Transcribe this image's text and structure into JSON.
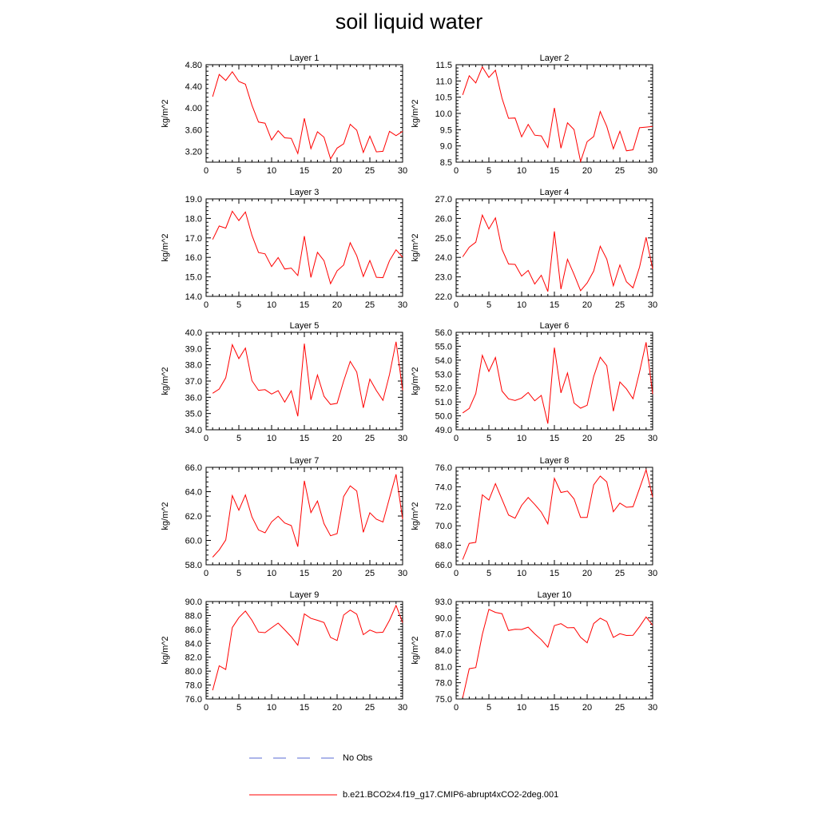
{
  "title": "soil liquid water",
  "legend": {
    "obs_label": "No Obs",
    "obs_color": "#5a6bd6",
    "model_label": "b.e21.BCO2x4.f19_g17.CMIP6-abrupt4xCO2-2deg.001",
    "model_color": "#ff0000"
  },
  "chart_data": [
    {
      "type": "line",
      "title": "Layer 1",
      "ylabel": "kg/m^2",
      "xlim": [
        0,
        30
      ],
      "ylim": [
        3.0,
        4.8
      ],
      "xticks": [
        "0",
        "5",
        "10",
        "15",
        "20",
        "25",
        "30"
      ],
      "yticks": [
        "3.20",
        "3.60",
        "4.00",
        "4.40",
        "4.80"
      ],
      "x": [
        1,
        2,
        3,
        4,
        5,
        6,
        7,
        8,
        9,
        10,
        11,
        12,
        13,
        14,
        15,
        16,
        17,
        18,
        19,
        20,
        21,
        22,
        23,
        24,
        25,
        26,
        27,
        28,
        29,
        30
      ],
      "values": [
        4.21,
        4.62,
        4.51,
        4.67,
        4.49,
        4.44,
        4.05,
        3.74,
        3.72,
        3.41,
        3.58,
        3.45,
        3.44,
        3.16,
        3.81,
        3.25,
        3.56,
        3.46,
        3.06,
        3.26,
        3.34,
        3.7,
        3.59,
        3.18,
        3.48,
        3.19,
        3.2,
        3.57,
        3.49,
        3.57
      ]
    },
    {
      "type": "line",
      "title": "Layer 2",
      "ylabel": "kg/m^2",
      "xlim": [
        0,
        30
      ],
      "ylim": [
        8.5,
        11.5
      ],
      "xticks": [
        "0",
        "5",
        "10",
        "15",
        "20",
        "25",
        "30"
      ],
      "yticks": [
        "8.5",
        "9.0",
        "9.5",
        "10.0",
        "10.5",
        "11.0",
        "11.5"
      ],
      "x": [
        1,
        2,
        3,
        4,
        5,
        6,
        7,
        8,
        9,
        10,
        11,
        12,
        13,
        14,
        15,
        16,
        17,
        18,
        19,
        20,
        21,
        22,
        23,
        24,
        25,
        26,
        27,
        28,
        29,
        30
      ],
      "values": [
        10.57,
        11.16,
        10.94,
        11.43,
        11.11,
        11.33,
        10.47,
        9.85,
        9.86,
        9.28,
        9.66,
        9.33,
        9.31,
        8.95,
        10.17,
        8.93,
        9.71,
        9.5,
        8.52,
        9.13,
        9.29,
        10.06,
        9.6,
        8.91,
        9.45,
        8.85,
        8.88,
        9.56,
        9.58,
        9.6
      ]
    },
    {
      "type": "line",
      "title": "Layer 3",
      "ylabel": "kg/m^2",
      "xlim": [
        0,
        30
      ],
      "ylim": [
        14.0,
        19.0
      ],
      "xticks": [
        "0",
        "5",
        "10",
        "15",
        "20",
        "25",
        "30"
      ],
      "yticks": [
        "14.0",
        "15.0",
        "16.0",
        "17.0",
        "18.0",
        "19.0"
      ],
      "x": [
        1,
        2,
        3,
        4,
        5,
        6,
        7,
        8,
        9,
        10,
        11,
        12,
        13,
        14,
        15,
        16,
        17,
        18,
        19,
        20,
        21,
        22,
        23,
        24,
        25,
        26,
        27,
        28,
        29,
        30
      ],
      "values": [
        16.92,
        17.61,
        17.5,
        18.37,
        17.89,
        18.33,
        17.13,
        16.25,
        16.18,
        15.53,
        15.99,
        15.4,
        15.45,
        15.07,
        17.09,
        14.97,
        16.26,
        15.83,
        14.65,
        15.31,
        15.61,
        16.75,
        16.08,
        15.02,
        15.84,
        14.98,
        14.96,
        15.83,
        16.39,
        16.01
      ]
    },
    {
      "type": "line",
      "title": "Layer 4",
      "ylabel": "kg/m^2",
      "xlim": [
        0,
        30
      ],
      "ylim": [
        22.0,
        27.0
      ],
      "xticks": [
        "0",
        "5",
        "10",
        "15",
        "20",
        "25",
        "30"
      ],
      "yticks": [
        "22.0",
        "23.0",
        "24.0",
        "25.0",
        "26.0",
        "27.0"
      ],
      "x": [
        1,
        2,
        3,
        4,
        5,
        6,
        7,
        8,
        9,
        10,
        11,
        12,
        13,
        14,
        15,
        16,
        17,
        18,
        19,
        20,
        21,
        22,
        23,
        24,
        25,
        26,
        27,
        28,
        29,
        30
      ],
      "values": [
        24.03,
        24.52,
        24.78,
        26.17,
        25.46,
        26.03,
        24.42,
        23.66,
        23.64,
        23.04,
        23.33,
        22.63,
        23.08,
        22.25,
        25.33,
        22.37,
        23.9,
        23.13,
        22.29,
        22.69,
        23.3,
        24.57,
        23.91,
        22.54,
        23.61,
        22.75,
        22.44,
        23.5,
        25.03,
        23.41
      ]
    },
    {
      "type": "line",
      "title": "Layer 5",
      "ylabel": "kg/m^2",
      "xlim": [
        0,
        30
      ],
      "ylim": [
        34.0,
        40.0
      ],
      "xticks": [
        "0",
        "5",
        "10",
        "15",
        "20",
        "25",
        "30"
      ],
      "yticks": [
        "34.0",
        "35.0",
        "36.0",
        "37.0",
        "38.0",
        "39.0",
        "40.0"
      ],
      "x": [
        1,
        2,
        3,
        4,
        5,
        6,
        7,
        8,
        9,
        10,
        11,
        12,
        13,
        14,
        15,
        16,
        17,
        18,
        19,
        20,
        21,
        22,
        23,
        24,
        25,
        26,
        27,
        28,
        29,
        30
      ],
      "values": [
        36.25,
        36.51,
        37.2,
        39.24,
        38.38,
        39.03,
        37.02,
        36.43,
        36.47,
        36.2,
        36.41,
        35.7,
        36.4,
        34.83,
        39.3,
        35.84,
        37.37,
        36.06,
        35.56,
        35.63,
        37.0,
        38.21,
        37.55,
        35.35,
        37.12,
        36.41,
        35.81,
        37.41,
        39.42,
        36.44
      ]
    },
    {
      "type": "line",
      "title": "Layer 6",
      "ylabel": "kg/m^2",
      "xlim": [
        0,
        30
      ],
      "ylim": [
        49.0,
        56.0
      ],
      "xticks": [
        "0",
        "5",
        "10",
        "15",
        "20",
        "25",
        "30"
      ],
      "yticks": [
        "49.0",
        "50.0",
        "51.0",
        "52.0",
        "53.0",
        "54.0",
        "55.0",
        "56.0"
      ],
      "x": [
        1,
        2,
        3,
        4,
        5,
        6,
        7,
        8,
        9,
        10,
        11,
        12,
        13,
        14,
        15,
        16,
        17,
        18,
        19,
        20,
        21,
        22,
        23,
        24,
        25,
        26,
        27,
        28,
        29,
        30
      ],
      "values": [
        50.21,
        50.53,
        51.6,
        54.35,
        53.19,
        54.19,
        51.78,
        51.22,
        51.1,
        51.28,
        51.68,
        51.08,
        51.47,
        49.44,
        54.9,
        51.65,
        53.08,
        50.92,
        50.55,
        50.76,
        52.82,
        54.21,
        53.6,
        50.33,
        52.43,
        51.94,
        51.23,
        53.16,
        55.28,
        51.57
      ]
    },
    {
      "type": "line",
      "title": "Layer 7",
      "ylabel": "kg/m^2",
      "xlim": [
        0,
        30
      ],
      "ylim": [
        58.0,
        66.0
      ],
      "xticks": [
        "0",
        "5",
        "10",
        "15",
        "20",
        "25",
        "30"
      ],
      "yticks": [
        "58.0",
        "60.0",
        "62.0",
        "64.0",
        "66.0"
      ],
      "x": [
        1,
        2,
        3,
        4,
        5,
        6,
        7,
        8,
        9,
        10,
        11,
        12,
        13,
        14,
        15,
        16,
        17,
        18,
        19,
        20,
        21,
        22,
        23,
        24,
        25,
        26,
        27,
        28,
        29,
        30
      ],
      "values": [
        58.62,
        59.22,
        60.04,
        63.68,
        62.48,
        63.73,
        61.93,
        60.86,
        60.62,
        61.52,
        61.98,
        61.43,
        61.22,
        59.49,
        64.89,
        62.28,
        63.23,
        61.38,
        60.38,
        60.56,
        63.6,
        64.48,
        64.06,
        60.66,
        62.27,
        61.74,
        61.51,
        63.48,
        65.42,
        61.76
      ]
    },
    {
      "type": "line",
      "title": "Layer 8",
      "ylabel": "kg/m^2",
      "xlim": [
        0,
        30
      ],
      "ylim": [
        66.0,
        76.0
      ],
      "xticks": [
        "0",
        "5",
        "10",
        "15",
        "20",
        "25",
        "30"
      ],
      "yticks": [
        "66.0",
        "68.0",
        "70.0",
        "72.0",
        "74.0",
        "76.0"
      ],
      "x": [
        1,
        2,
        3,
        4,
        5,
        6,
        7,
        8,
        9,
        10,
        11,
        12,
        13,
        14,
        15,
        16,
        17,
        18,
        19,
        20,
        21,
        22,
        23,
        24,
        25,
        26,
        27,
        28,
        29,
        30
      ],
      "values": [
        66.53,
        68.2,
        68.3,
        73.18,
        72.64,
        74.33,
        72.71,
        71.11,
        70.78,
        72.1,
        72.9,
        72.2,
        71.4,
        70.2,
        74.87,
        73.42,
        73.56,
        72.76,
        70.85,
        70.85,
        74.2,
        75.1,
        74.5,
        71.44,
        72.33,
        71.9,
        71.95,
        73.84,
        75.75,
        72.93
      ]
    },
    {
      "type": "line",
      "title": "Layer 9",
      "ylabel": "kg/m^2",
      "xlim": [
        0,
        30
      ],
      "ylim": [
        76.0,
        90.0
      ],
      "xticks": [
        "0",
        "5",
        "10",
        "15",
        "20",
        "25",
        "30"
      ],
      "yticks": [
        "76.0",
        "78.0",
        "80.0",
        "82.0",
        "84.0",
        "86.0",
        "88.0",
        "90.0"
      ],
      "x": [
        1,
        2,
        3,
        4,
        5,
        6,
        7,
        8,
        9,
        10,
        11,
        12,
        13,
        14,
        15,
        16,
        17,
        18,
        19,
        20,
        21,
        22,
        23,
        24,
        25,
        26,
        27,
        28,
        29,
        30
      ],
      "values": [
        77.25,
        80.76,
        80.24,
        86.26,
        87.68,
        88.64,
        87.3,
        85.62,
        85.52,
        86.22,
        86.9,
        85.94,
        84.94,
        83.72,
        88.22,
        87.58,
        87.3,
        86.98,
        84.85,
        84.4,
        88.06,
        88.77,
        88.19,
        85.24,
        85.9,
        85.53,
        85.59,
        87.3,
        89.44,
        86.96
      ]
    },
    {
      "type": "line",
      "title": "Layer 10",
      "ylabel": "kg/m^2",
      "xlim": [
        0,
        30
      ],
      "ylim": [
        75.0,
        93.0
      ],
      "xticks": [
        "0",
        "5",
        "10",
        "15",
        "20",
        "25",
        "30"
      ],
      "yticks": [
        "75.0",
        "78.0",
        "81.0",
        "84.0",
        "87.0",
        "90.0",
        "93.0"
      ],
      "x": [
        1,
        2,
        3,
        4,
        5,
        6,
        7,
        8,
        9,
        10,
        11,
        12,
        13,
        14,
        15,
        16,
        17,
        18,
        19,
        20,
        21,
        22,
        23,
        24,
        25,
        26,
        27,
        28,
        29,
        30
      ],
      "values": [
        75.2,
        80.59,
        80.8,
        86.94,
        91.56,
        90.99,
        90.76,
        87.64,
        87.87,
        87.84,
        88.27,
        87.02,
        85.95,
        84.58,
        88.56,
        88.91,
        88.14,
        88.19,
        86.39,
        85.39,
        88.93,
        89.92,
        89.29,
        86.38,
        87.05,
        86.73,
        86.76,
        88.37,
        90.14,
        88.64
      ]
    }
  ]
}
